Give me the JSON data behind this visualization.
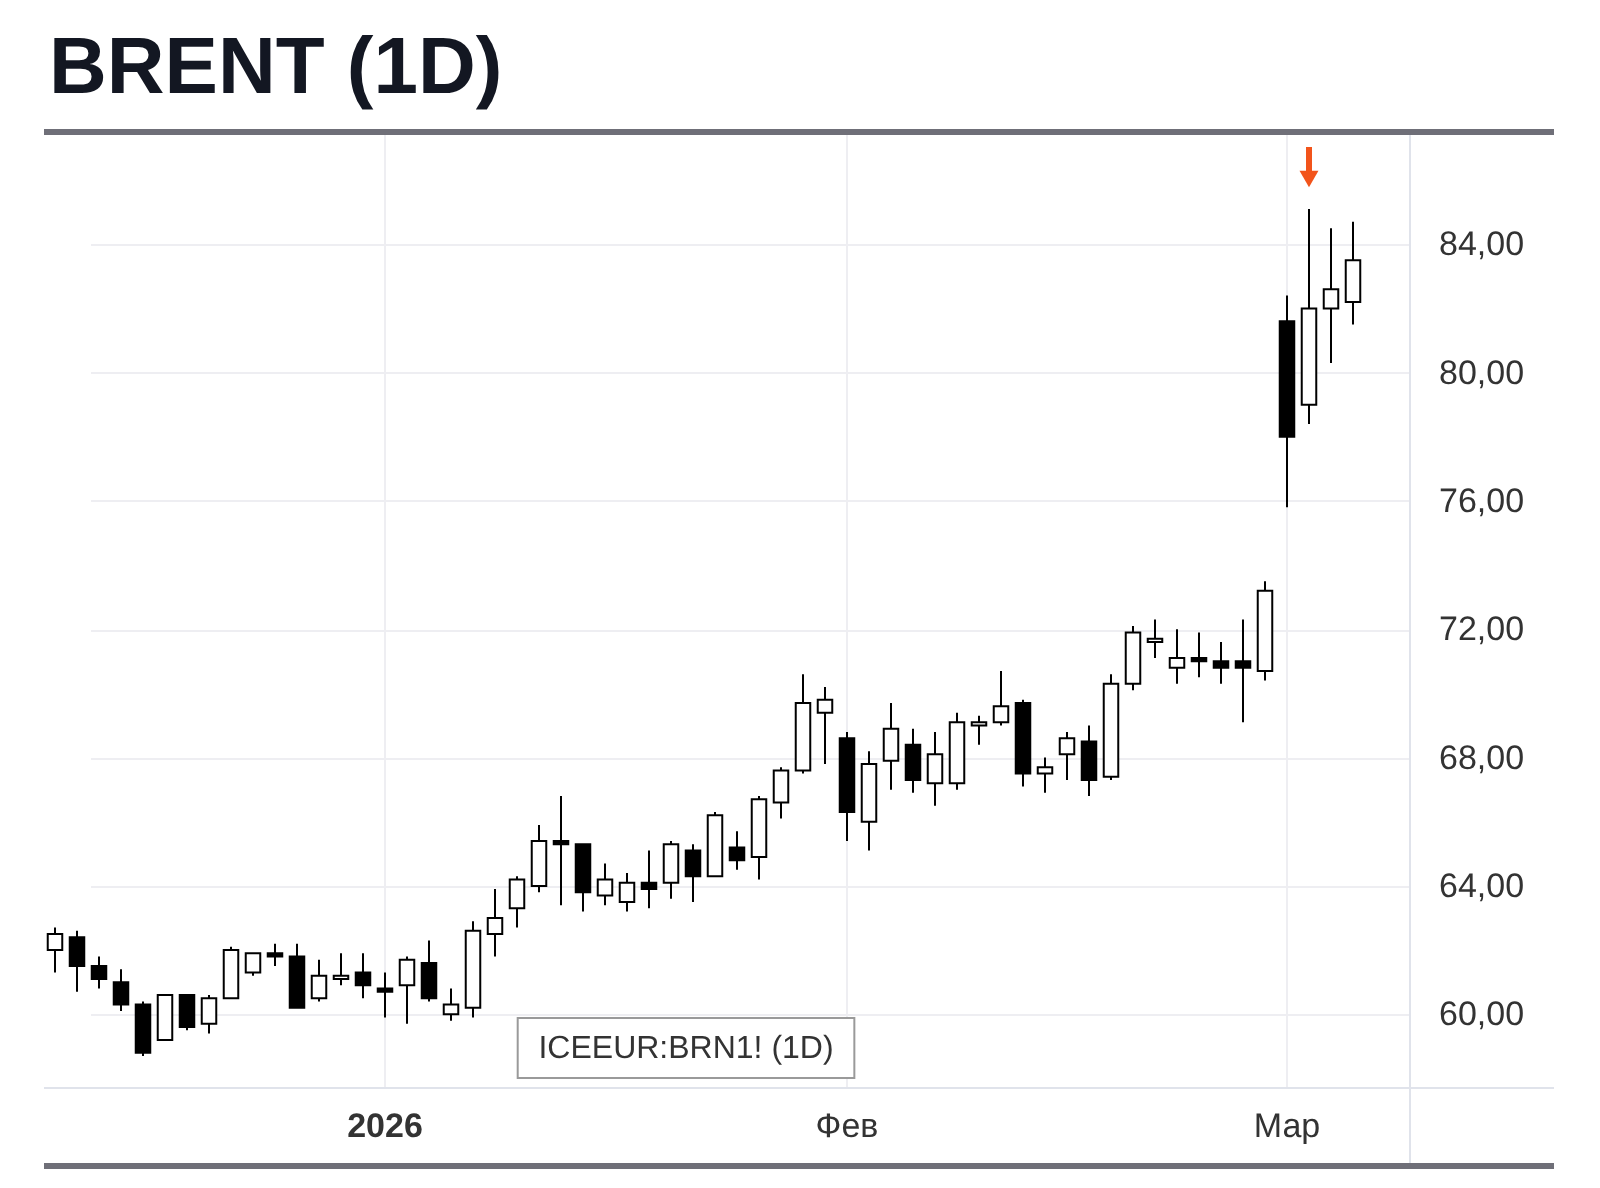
{
  "chart_data": {
    "type": "candlestick",
    "title": "BRENT (1D)",
    "categories": [
      null,
      null,
      null,
      null,
      null,
      null,
      null,
      null,
      null,
      null,
      null,
      null,
      null,
      null,
      null,
      "2026",
      null,
      null,
      null,
      null,
      null,
      null,
      null,
      null,
      null,
      null,
      null,
      null,
      null,
      null,
      null,
      null,
      null,
      null,
      null,
      null,
      "Фев",
      null,
      null,
      null,
      null,
      null,
      null,
      null,
      null,
      null,
      null,
      null,
      null,
      null,
      null,
      null,
      null,
      null,
      null,
      null,
      "Мар",
      null,
      null,
      null
    ],
    "ohlc": [
      [
        62.0,
        62.7,
        61.3,
        62.5
      ],
      [
        62.4,
        62.6,
        60.7,
        61.5
      ],
      [
        61.5,
        61.8,
        60.8,
        61.1
      ],
      [
        61.0,
        61.4,
        60.1,
        60.3
      ],
      [
        60.3,
        60.4,
        58.7,
        58.8
      ],
      [
        59.2,
        60.6,
        59.2,
        60.6
      ],
      [
        60.6,
        60.6,
        59.5,
        59.6
      ],
      [
        59.7,
        60.6,
        59.4,
        60.5
      ],
      [
        60.5,
        62.1,
        60.5,
        62.0
      ],
      [
        61.3,
        61.9,
        61.2,
        61.9
      ],
      [
        61.9,
        62.2,
        61.5,
        61.8
      ],
      [
        61.8,
        62.2,
        60.2,
        60.2
      ],
      [
        60.5,
        61.7,
        60.4,
        61.2
      ],
      [
        61.1,
        61.9,
        60.9,
        61.2
      ],
      [
        61.3,
        61.9,
        60.5,
        60.9
      ],
      [
        60.8,
        61.3,
        59.9,
        60.7
      ],
      [
        60.9,
        61.8,
        59.7,
        61.7
      ],
      [
        61.6,
        62.3,
        60.4,
        60.5
      ],
      [
        60.0,
        60.8,
        59.8,
        60.3
      ],
      [
        60.2,
        62.9,
        59.9,
        62.6
      ],
      [
        62.5,
        63.9,
        61.8,
        63.0
      ],
      [
        63.3,
        64.3,
        62.7,
        64.2
      ],
      [
        64.0,
        65.9,
        63.8,
        65.4
      ],
      [
        65.4,
        66.8,
        63.4,
        65.3
      ],
      [
        65.3,
        65.3,
        63.2,
        63.8
      ],
      [
        63.7,
        64.7,
        63.4,
        64.2
      ],
      [
        63.5,
        64.4,
        63.2,
        64.1
      ],
      [
        64.1,
        65.1,
        63.3,
        63.9
      ],
      [
        64.1,
        65.4,
        63.6,
        65.3
      ],
      [
        65.1,
        65.3,
        63.5,
        64.3
      ],
      [
        64.3,
        66.3,
        64.3,
        66.2
      ],
      [
        65.2,
        65.7,
        64.5,
        64.8
      ],
      [
        64.9,
        66.8,
        64.2,
        66.7
      ],
      [
        66.6,
        67.7,
        66.1,
        67.6
      ],
      [
        67.6,
        70.6,
        67.5,
        69.7
      ],
      [
        69.4,
        70.2,
        67.8,
        69.8
      ],
      [
        68.6,
        68.8,
        65.4,
        66.3
      ],
      [
        66.0,
        68.2,
        65.1,
        67.8
      ],
      [
        67.9,
        69.7,
        67.0,
        68.9
      ],
      [
        68.4,
        68.9,
        66.9,
        67.3
      ],
      [
        67.2,
        68.8,
        66.5,
        68.1
      ],
      [
        67.2,
        69.4,
        67.0,
        69.1
      ],
      [
        69.0,
        69.3,
        68.4,
        69.1
      ],
      [
        69.1,
        70.7,
        69.0,
        69.6
      ],
      [
        69.7,
        69.8,
        67.1,
        67.5
      ],
      [
        67.5,
        68.0,
        66.9,
        67.7
      ],
      [
        68.1,
        68.8,
        67.3,
        68.6
      ],
      [
        68.5,
        69.0,
        66.8,
        67.3
      ],
      [
        67.4,
        70.6,
        67.3,
        70.3
      ],
      [
        70.3,
        72.1,
        70.1,
        71.9
      ],
      [
        71.6,
        72.3,
        71.1,
        71.7
      ],
      [
        70.8,
        72.0,
        70.3,
        71.1
      ],
      [
        71.1,
        71.9,
        70.5,
        71.0
      ],
      [
        71.0,
        71.6,
        70.3,
        70.8
      ],
      [
        71.0,
        72.3,
        69.1,
        70.8
      ],
      [
        70.7,
        73.5,
        70.4,
        73.2
      ],
      [
        81.6,
        82.4,
        75.8,
        78.0
      ],
      [
        79.0,
        85.1,
        78.4,
        82.0
      ],
      [
        82.0,
        84.5,
        80.3,
        82.6
      ],
      [
        82.2,
        84.7,
        81.5,
        83.5
      ]
    ],
    "colors": [
      "#ffffff",
      "#000000",
      "#000000",
      "#000000",
      "#000000",
      "#ffffff",
      "#000000",
      "#ffffff",
      "#ffffff",
      "#ffffff",
      "#000000",
      "#000000",
      "#ffffff",
      "#ffffff",
      "#000000",
      "#000000",
      "#ffffff",
      "#000000",
      "#ffffff",
      "#ffffff",
      "#ffffff",
      "#ffffff",
      "#ffffff",
      "#000000",
      "#000000",
      "#ffffff",
      "#ffffff",
      "#000000",
      "#ffffff",
      "#000000",
      "#ffffff",
      "#000000",
      "#ffffff",
      "#ffffff",
      "#ffffff",
      "#ffffff",
      "#000000",
      "#ffffff",
      "#ffffff",
      "#000000",
      "#ffffff",
      "#ffffff",
      "#ffffff",
      "#ffffff",
      "#000000",
      "#ffffff",
      "#ffffff",
      "#000000",
      "#ffffff",
      "#ffffff",
      "#ffffff",
      "#ffffff",
      "#000000",
      "#000000",
      "#000000",
      "#ffffff",
      "#000000",
      "#ffffff",
      "#ffffff",
      "#ffffff"
    ],
    "ylim": [
      57.7,
      87.5
    ],
    "yticks": [
      {
        "value": 60,
        "label": "60,00"
      },
      {
        "value": 64,
        "label": "64,00"
      },
      {
        "value": 68,
        "label": "68,00"
      },
      {
        "value": 72,
        "label": "72,00"
      },
      {
        "value": 76,
        "label": "76,00"
      },
      {
        "value": 80,
        "label": "80,00"
      },
      {
        "value": 84,
        "label": "84,00"
      }
    ],
    "grid": true,
    "annotations": [
      "ICEEUR:BRN1! (1D)"
    ]
  }
}
